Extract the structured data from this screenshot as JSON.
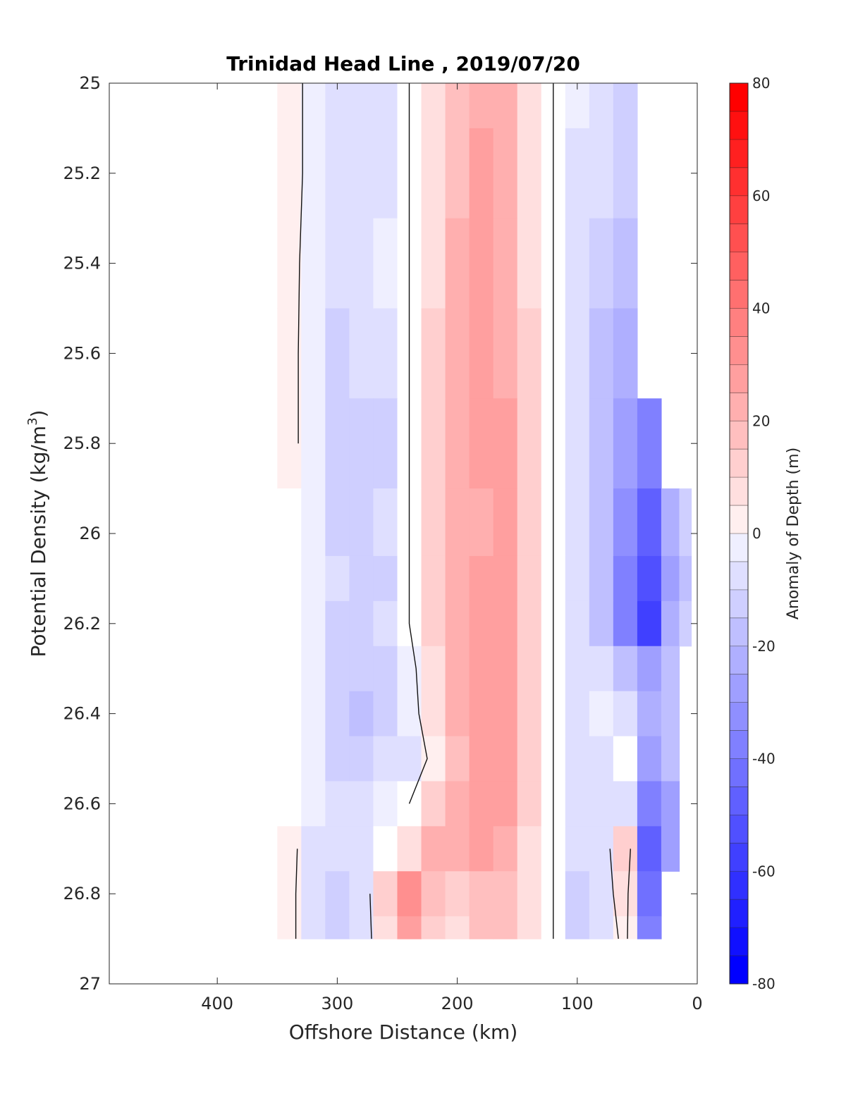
{
  "chart_data": {
    "type": "heatmap",
    "title": "Trinidad Head Line , 2019/07/20",
    "xlabel": "Offshore Distance (km)",
    "ylabel_main": "Potential Density (kg/m",
    "ylabel_sup": "3",
    "ylabel_close": ")",
    "xlim": [
      490,
      0
    ],
    "ylim": [
      25,
      27
    ],
    "x_reversed": true,
    "y_reversed": true,
    "xticks": [
      400,
      300,
      200,
      100,
      0
    ],
    "xtick_labels": [
      "400",
      "300",
      "200",
      "100",
      "0"
    ],
    "yticks": [
      25,
      25.2,
      25.4,
      25.6,
      25.8,
      26,
      26.2,
      26.4,
      26.6,
      26.8,
      27
    ],
    "ytick_labels": [
      "25",
      "25.2",
      "25.4",
      "25.6",
      "25.8",
      "26",
      "26.2",
      "26.4",
      "26.6",
      "26.8",
      "27"
    ],
    "colorbar": {
      "label": "Anomaly of Depth (m)",
      "range": [
        -80,
        80
      ],
      "step": 5,
      "ticks": [
        80,
        60,
        40,
        20,
        0,
        -20,
        -40,
        -60,
        -80
      ],
      "tick_labels": [
        "80",
        "60",
        "40",
        "20",
        "0",
        "-20",
        "-40",
        "-60",
        "-80"
      ],
      "max_color": "#ff0000",
      "min_color": "#0000ff",
      "zero_color": "#ffffff"
    },
    "grid": false,
    "x_nodes_km": [
      340,
      320,
      300,
      280,
      260,
      240,
      220,
      200,
      180,
      160,
      140,
      120,
      100,
      80,
      60,
      40,
      20,
      10
    ],
    "sigma_nodes": [
      25.0,
      25.2,
      25.4,
      25.6,
      25.8,
      26.0,
      26.1,
      26.2,
      26.3,
      26.4,
      26.5,
      26.6,
      26.7,
      26.8,
      26.9
    ],
    "anomaly_m": [
      [
        5,
        -4,
        -8,
        -8,
        -6,
        0,
        10,
        18,
        24,
        22,
        10,
        0,
        -5,
        -7,
        -12,
        null,
        null,
        null
      ],
      [
        5,
        -4,
        -8,
        -10,
        -7,
        0,
        10,
        20,
        26,
        22,
        10,
        0,
        -6,
        -10,
        -14,
        null,
        null,
        null
      ],
      [
        3,
        -4,
        -10,
        -10,
        -5,
        0,
        10,
        22,
        28,
        22,
        10,
        0,
        -8,
        -14,
        -18,
        null,
        null,
        null
      ],
      [
        3,
        -5,
        -12,
        -10,
        -10,
        0,
        12,
        22,
        26,
        24,
        12,
        0,
        -8,
        -16,
        -24,
        null,
        null,
        null
      ],
      [
        3,
        -5,
        -12,
        -12,
        -14,
        0,
        12,
        22,
        28,
        26,
        12,
        0,
        -8,
        -18,
        -28,
        -38,
        null,
        null
      ],
      [
        0,
        -5,
        -12,
        -14,
        -10,
        0,
        12,
        22,
        24,
        26,
        12,
        0,
        -8,
        -18,
        -34,
        -48,
        -25,
        -15
      ],
      [
        0,
        -4,
        -10,
        -14,
        -12,
        0,
        12,
        22,
        26,
        26,
        12,
        0,
        -8,
        -20,
        -40,
        -55,
        -26,
        -18
      ],
      [
        0,
        -4,
        -12,
        -12,
        -10,
        0,
        12,
        22,
        26,
        28,
        12,
        0,
        -8,
        -18,
        -36,
        -60,
        -22,
        -15
      ],
      [
        0,
        -4,
        -12,
        -14,
        -12,
        -4,
        10,
        22,
        26,
        26,
        12,
        0,
        -6,
        -10,
        -20,
        -30,
        -18,
        null
      ],
      [
        0,
        -5,
        -12,
        -16,
        -12,
        -4,
        6,
        22,
        28,
        26,
        12,
        0,
        -8,
        -4,
        -10,
        -24,
        -16,
        null
      ],
      [
        0,
        -5,
        -12,
        -14,
        -10,
        -6,
        2,
        20,
        30,
        26,
        12,
        0,
        -10,
        -6,
        0,
        -30,
        -20,
        null
      ],
      [
        0,
        -2,
        -8,
        -10,
        -4,
        0,
        14,
        24,
        30,
        26,
        12,
        0,
        -8,
        -8,
        -6,
        -40,
        -28,
        null
      ],
      [
        3,
        -6,
        -10,
        -8,
        0,
        10,
        22,
        24,
        26,
        24,
        10,
        0,
        -10,
        -8,
        14,
        -50,
        -26,
        null
      ],
      [
        3,
        -8,
        -12,
        -8,
        14,
        32,
        18,
        14,
        20,
        20,
        8,
        0,
        -12,
        -6,
        6,
        -45,
        null,
        null
      ],
      [
        3,
        -8,
        -12,
        -6,
        8,
        30,
        14,
        10,
        18,
        18,
        8,
        0,
        -14,
        -10,
        4,
        -40,
        null,
        null
      ]
    ]
  }
}
